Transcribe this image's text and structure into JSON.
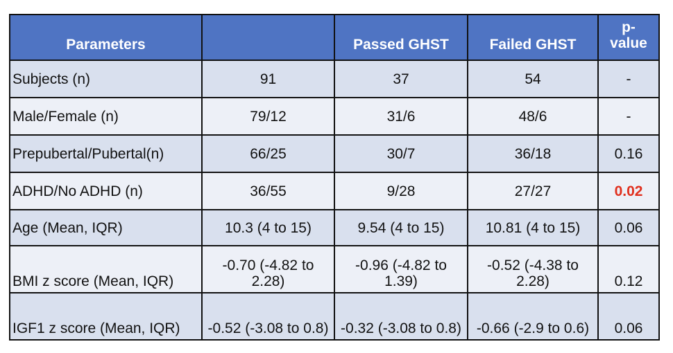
{
  "table": {
    "headers": [
      "Parameters",
      "",
      "Passed GHST",
      "Failed GHST",
      "p-\nvalue"
    ],
    "rows": [
      {
        "param": "Subjects (n)",
        "total": "91",
        "passed": "37",
        "failed": "54",
        "p": "-"
      },
      {
        "param": "Male/Female (n)",
        "total": "79/12",
        "passed": "31/6",
        "failed": "48/6",
        "p": "-"
      },
      {
        "param": "Prepubertal/Pubertal(n)",
        "total": "66/25",
        "passed": "30/7",
        "failed": "36/18",
        "p": "0.16"
      },
      {
        "param": "ADHD/No ADHD (n)",
        "total": "36/55",
        "passed": "9/28",
        "failed": "27/27",
        "p": "0.02"
      },
      {
        "param": "Age (Mean, IQR)",
        "total": "10.3 (4 to 15)",
        "passed": "9.54 (4 to 15)",
        "failed": "10.81 (4 to 15)",
        "p": "0.06"
      },
      {
        "param": "BMI z score (Mean, IQR)",
        "total": "-0.70 (-4.82 to 2.28)",
        "passed": "-0.96 (-4.82 to 1.39)",
        "failed": "-0.52 (-4.38 to 2.28)",
        "p": "0.12"
      },
      {
        "param": "IGF1 z score (Mean, IQR)",
        "total": "-0.52 (-3.08 to 0.8)",
        "passed": "-0.32 (-3.08 to 0.8)",
        "failed": "-0.66 (-2.9 to 0.6)",
        "p": "0.06"
      }
    ]
  },
  "colors": {
    "header_bg": "#4f74c3",
    "row_odd_bg": "#d9e0ee",
    "row_even_bg": "#edf0f7",
    "significant_text": "#e0301e"
  }
}
